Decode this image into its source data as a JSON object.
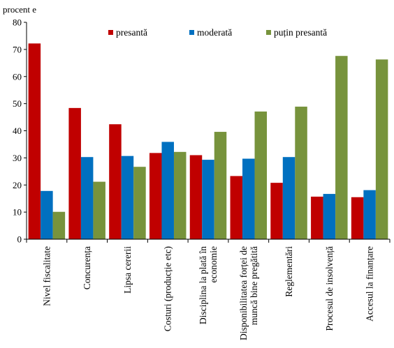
{
  "chart_data": {
    "type": "bar",
    "ylabel": "procent e",
    "ylim": [
      0,
      80
    ],
    "yticks": [
      0,
      10,
      20,
      30,
      40,
      50,
      60,
      70,
      80
    ],
    "grid": false,
    "legend_position": "top",
    "categories": [
      "Nivel fiscalitate",
      "Concurența",
      "Lipsa cererii",
      "Costuri (producție etc)",
      "Disciplina la plată în economie",
      "Disponibilitatea forței de muncă bine pregătită",
      "Reglementări",
      "Procesul de insolvență",
      "Accesul la finanțare"
    ],
    "series": [
      {
        "name": "presantă",
        "color": "#C00000",
        "values": [
          72.2,
          48.4,
          42.4,
          31.8,
          31.0,
          23.3,
          20.8,
          15.7,
          15.5
        ]
      },
      {
        "name": "moderată",
        "color": "#0070C0",
        "values": [
          17.8,
          30.3,
          30.7,
          35.9,
          29.3,
          29.7,
          30.3,
          16.7,
          18.1
        ]
      },
      {
        "name": "puțin presantă",
        "color": "#77933C",
        "values": [
          10.1,
          21.2,
          26.7,
          32.2,
          39.6,
          47.1,
          48.9,
          67.6,
          66.3
        ]
      }
    ]
  }
}
